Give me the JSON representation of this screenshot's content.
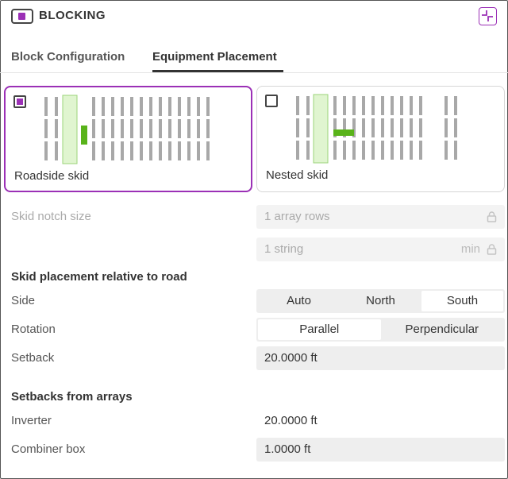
{
  "header": {
    "title": "BLOCKING",
    "toggle_icon": "panel-toggle-icon",
    "collapse_icon": "collapse-icon",
    "accent": "#9b30b6"
  },
  "tabs": [
    {
      "label": "Block Configuration",
      "active": false
    },
    {
      "label": "Equipment Placement",
      "active": true
    }
  ],
  "cards": [
    {
      "label": "Roadside skid",
      "selected": true
    },
    {
      "label": "Nested skid",
      "selected": false
    }
  ],
  "skid_notch": {
    "label": "Skid notch size",
    "rows_value": "1 array rows",
    "string_value": "1 string",
    "string_unit": "min"
  },
  "skid_placement": {
    "heading": "Skid placement relative to road",
    "side_label": "Side",
    "side_options": [
      "Auto",
      "North",
      "South"
    ],
    "side_selected": "South",
    "rotation_label": "Rotation",
    "rotation_options": [
      "Parallel",
      "Perpendicular"
    ],
    "rotation_selected": "Parallel",
    "setback_label": "Setback",
    "setback_value": "20.0000 ft"
  },
  "array_setbacks": {
    "heading": "Setbacks from arrays",
    "inverter_label": "Inverter",
    "inverter_value": "20.0000 ft",
    "combiner_label": "Combiner box",
    "combiner_value": "1.0000 ft"
  },
  "colors": {
    "skid_green": "#59b31a",
    "road_fill": "#e0f5d0",
    "road_stroke": "#9bd47a",
    "array_bar": "#a8a8a8"
  }
}
